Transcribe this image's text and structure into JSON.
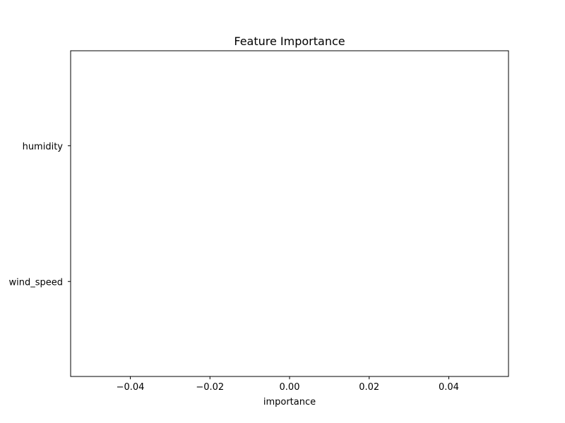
{
  "chart_data": {
    "type": "bar",
    "orientation": "horizontal",
    "title": "Feature Importance",
    "xlabel": "importance",
    "ylabel": "",
    "categories": [
      "wind_speed",
      "humidity"
    ],
    "values": [
      0,
      0
    ],
    "xlim": [
      -0.055,
      0.055
    ],
    "xticks": [
      -0.04,
      -0.02,
      0.0,
      0.02,
      0.04
    ],
    "xtick_labels": [
      "−0.04",
      "−0.02",
      "0.00",
      "0.02",
      "0.04"
    ],
    "grid": false,
    "legend": "none"
  }
}
